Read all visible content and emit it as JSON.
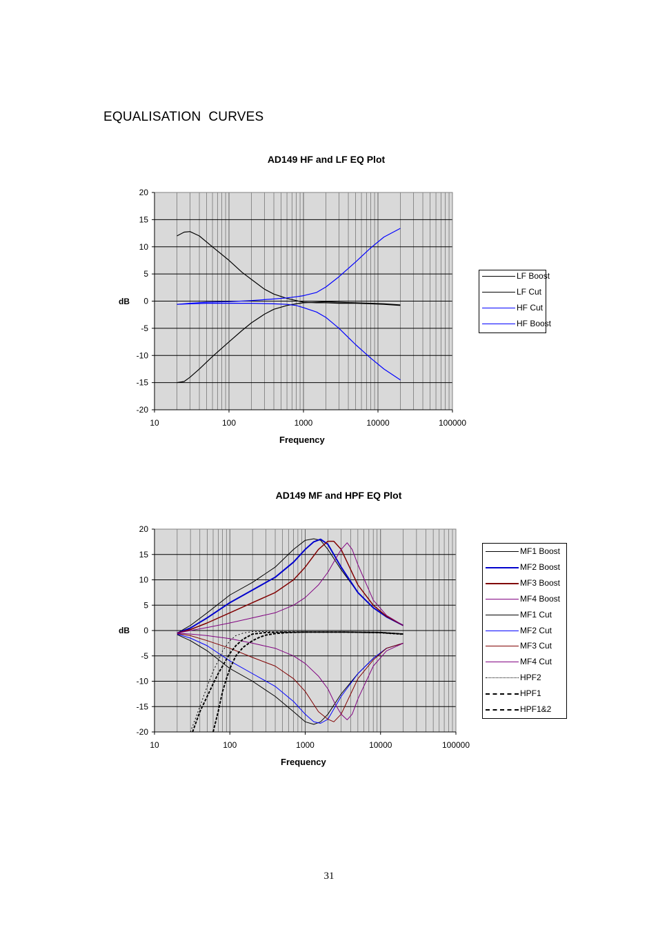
{
  "page": {
    "heading": "EQUALISATION  CURVES",
    "page_number": "31"
  },
  "chart_data": [
    {
      "type": "line",
      "title": "AD149 HF and LF EQ Plot",
      "xlabel": "Frequency",
      "ylabel": "dB",
      "xscale": "log",
      "xlim": [
        10,
        100000
      ],
      "ylim": [
        -20,
        20
      ],
      "xticks": [
        "10",
        "100",
        "1000",
        "10000",
        "100000"
      ],
      "yticks": [
        "20",
        "15",
        "10",
        "5",
        "0",
        "-5",
        "-10",
        "-15",
        "-20"
      ],
      "plot_background": "#d9d9d9",
      "grid": true,
      "legend_position": "right",
      "series": [
        {
          "name": "LF Boost",
          "color": "#000000",
          "dash": "",
          "x": [
            20,
            25,
            30,
            40,
            60,
            100,
            150,
            200,
            300,
            400,
            600,
            800,
            1000,
            1500,
            2000,
            3000,
            5000,
            8000,
            12000,
            20000
          ],
          "y": [
            12,
            12.7,
            12.8,
            12,
            10,
            7.5,
            5.3,
            4,
            2.2,
            1.3,
            0.5,
            0.1,
            -0.2,
            -0.3,
            -0.3,
            -0.4,
            -0.4,
            -0.5,
            -0.6,
            -0.8
          ]
        },
        {
          "name": "LF Cut",
          "color": "#000000",
          "dash": "",
          "x": [
            20,
            25,
            30,
            40,
            60,
            100,
            150,
            200,
            300,
            400,
            600,
            800,
            1000,
            1500,
            2000,
            3000,
            5000,
            8000,
            12000,
            20000
          ],
          "y": [
            -15,
            -14.8,
            -14,
            -12.5,
            -10.2,
            -7.5,
            -5.4,
            -4,
            -2.4,
            -1.5,
            -0.8,
            -0.5,
            -0.3,
            -0.2,
            -0.1,
            -0.2,
            -0.3,
            -0.4,
            -0.5,
            -0.7
          ]
        },
        {
          "name": "HF Cut",
          "color": "#0000ff",
          "dash": "",
          "x": [
            20,
            30,
            50,
            100,
            200,
            400,
            600,
            800,
            1000,
            1500,
            2000,
            3000,
            5000,
            8000,
            12000,
            20000
          ],
          "y": [
            -0.6,
            -0.5,
            -0.4,
            -0.4,
            -0.4,
            -0.5,
            -0.6,
            -0.8,
            -1.2,
            -2,
            -3,
            -5,
            -8,
            -10.5,
            -12.5,
            -14.5
          ]
        },
        {
          "name": "HF Boost",
          "color": "#0000ff",
          "dash": "",
          "x": [
            20,
            30,
            50,
            100,
            200,
            400,
            600,
            800,
            1000,
            1500,
            2000,
            3000,
            5000,
            8000,
            12000,
            20000
          ],
          "y": [
            -0.6,
            -0.4,
            -0.2,
            -0.1,
            0.1,
            0.4,
            0.6,
            0.8,
            1,
            1.6,
            2.6,
            4.5,
            7.2,
            9.8,
            11.8,
            13.4
          ]
        }
      ]
    },
    {
      "type": "line",
      "title": "AD149 MF and HPF EQ Plot",
      "xlabel": "Frequency",
      "ylabel": "dB",
      "xscale": "log",
      "xlim": [
        10,
        100000
      ],
      "ylim": [
        -20,
        20
      ],
      "xticks": [
        "10",
        "100",
        "1000",
        "10000",
        "100000"
      ],
      "yticks": [
        "20",
        "15",
        "10",
        "5",
        "0",
        "-5",
        "-10",
        "-15",
        "-20"
      ],
      "plot_background": "#d9d9d9",
      "grid": true,
      "legend_position": "right",
      "series": [
        {
          "name": "MF1 Boost",
          "color": "#000000",
          "dash": "",
          "width": 1,
          "x": [
            20,
            30,
            50,
            100,
            200,
            400,
            700,
            1000,
            1300,
            1600,
            2000,
            3000,
            5000,
            8000,
            12000,
            20000
          ],
          "y": [
            -0.5,
            1,
            3.5,
            7,
            9.5,
            12.5,
            16,
            17.8,
            18.1,
            17.8,
            16,
            12,
            7.5,
            4.5,
            2.7,
            1
          ]
        },
        {
          "name": "MF2 Boost",
          "color": "#0000cc",
          "dash": "",
          "width": 2,
          "x": [
            20,
            30,
            50,
            100,
            200,
            400,
            700,
            1000,
            1300,
            1600,
            2000,
            3000,
            5000,
            8000,
            12000,
            20000
          ],
          "y": [
            -0.5,
            0.5,
            2.5,
            5.5,
            8,
            10.5,
            13.5,
            16,
            17.5,
            18,
            17,
            12.5,
            7.5,
            4.5,
            2.7,
            1
          ]
        },
        {
          "name": "MF3 Boost",
          "color": "#800000",
          "dash": "",
          "width": 1.5,
          "x": [
            20,
            30,
            50,
            100,
            200,
            400,
            700,
            1000,
            1500,
            2000,
            2400,
            3000,
            5000,
            8000,
            12000,
            20000
          ],
          "y": [
            -0.5,
            0.2,
            1.5,
            3.5,
            5.5,
            7.5,
            10,
            12.5,
            16,
            17.6,
            17.6,
            16,
            9,
            5,
            2.8,
            1
          ]
        },
        {
          "name": "MF4 Boost",
          "color": "#800080",
          "dash": "",
          "width": 1,
          "x": [
            20,
            30,
            50,
            100,
            200,
            400,
            700,
            1000,
            1500,
            2000,
            2500,
            3000,
            3600,
            4200,
            5000,
            8000,
            12000,
            20000
          ],
          "y": [
            -0.5,
            0,
            0.6,
            1.5,
            2.5,
            3.5,
            5,
            6.5,
            9,
            11.5,
            14,
            16,
            17.3,
            16,
            13,
            6,
            3,
            1
          ]
        },
        {
          "name": "MF1 Cut",
          "color": "#000000",
          "dash": "",
          "width": 1,
          "x": [
            20,
            30,
            50,
            100,
            200,
            400,
            700,
            1000,
            1300,
            1600,
            2000,
            3000,
            5000,
            8000,
            12000,
            20000
          ],
          "y": [
            -0.8,
            -2,
            -4,
            -7.5,
            -10,
            -13,
            -16,
            -18,
            -18.5,
            -18,
            -16.5,
            -12.5,
            -8.5,
            -5.5,
            -3.5,
            -2.5
          ]
        },
        {
          "name": "MF2 Cut",
          "color": "#0000ff",
          "dash": "",
          "width": 1,
          "x": [
            20,
            30,
            50,
            100,
            200,
            400,
            700,
            1000,
            1300,
            1600,
            2000,
            3000,
            5000,
            8000,
            12000,
            20000
          ],
          "y": [
            -0.7,
            -1.5,
            -3,
            -6,
            -8.5,
            -11,
            -14,
            -16.5,
            -18,
            -18.3,
            -17.5,
            -13,
            -8.5,
            -5.5,
            -3.5,
            -2.5
          ]
        },
        {
          "name": "MF3 Cut",
          "color": "#800000",
          "dash": "",
          "width": 1,
          "x": [
            20,
            30,
            50,
            100,
            200,
            400,
            700,
            1000,
            1500,
            2000,
            2400,
            3000,
            5000,
            8000,
            12000,
            20000
          ],
          "y": [
            -0.6,
            -1,
            -2,
            -3.5,
            -5.3,
            -7,
            -9.5,
            -12,
            -16,
            -17.5,
            -18,
            -16.5,
            -9.5,
            -5.8,
            -3.5,
            -2.5
          ]
        },
        {
          "name": "MF4 Cut",
          "color": "#800080",
          "dash": "",
          "width": 1,
          "x": [
            20,
            30,
            50,
            100,
            200,
            400,
            700,
            1000,
            1500,
            2000,
            2500,
            3000,
            3600,
            4200,
            5000,
            8000,
            12000,
            20000
          ],
          "y": [
            -0.5,
            -0.7,
            -1,
            -1.6,
            -2.5,
            -3.5,
            -5,
            -6.5,
            -9,
            -11.5,
            -14.5,
            -16.5,
            -17.6,
            -16.5,
            -13.5,
            -7,
            -4,
            -2.5
          ]
        },
        {
          "name": "HPF2",
          "color": "#000000",
          "dash": "2,3",
          "width": 1,
          "x": [
            30,
            40,
            50,
            60,
            70,
            80,
            100,
            120,
            150,
            200,
            300,
            500,
            1000,
            3000,
            10000,
            20000
          ],
          "y": [
            -20,
            -15,
            -11,
            -8,
            -6,
            -4,
            -2,
            -1,
            -0.5,
            -0.2,
            -0.2,
            -0.3,
            -0.3,
            -0.3,
            -0.5,
            -0.8
          ]
        },
        {
          "name": "HPF1",
          "color": "#000000",
          "dash": "4,2",
          "width": 2,
          "x": [
            32,
            40,
            50,
            60,
            70,
            80,
            100,
            120,
            150,
            200,
            300,
            500,
            1000,
            3000,
            10000,
            20000
          ],
          "y": [
            -20,
            -16,
            -13,
            -10.5,
            -8.5,
            -7,
            -4.5,
            -3,
            -1.7,
            -0.7,
            -0.4,
            -0.3,
            -0.3,
            -0.3,
            -0.4,
            -0.7
          ]
        },
        {
          "name": "HPF1&2",
          "color": "#000000",
          "dash": "4,2",
          "width": 2,
          "x": [
            60,
            70,
            80,
            90,
            100,
            120,
            150,
            200,
            250,
            300,
            400,
            600,
            1000,
            3000,
            10000,
            20000
          ],
          "y": [
            -20,
            -16,
            -12,
            -9.5,
            -7.5,
            -5,
            -3.3,
            -2,
            -1.3,
            -0.9,
            -0.6,
            -0.4,
            -0.3,
            -0.3,
            -0.4,
            -0.7
          ]
        }
      ]
    }
  ]
}
